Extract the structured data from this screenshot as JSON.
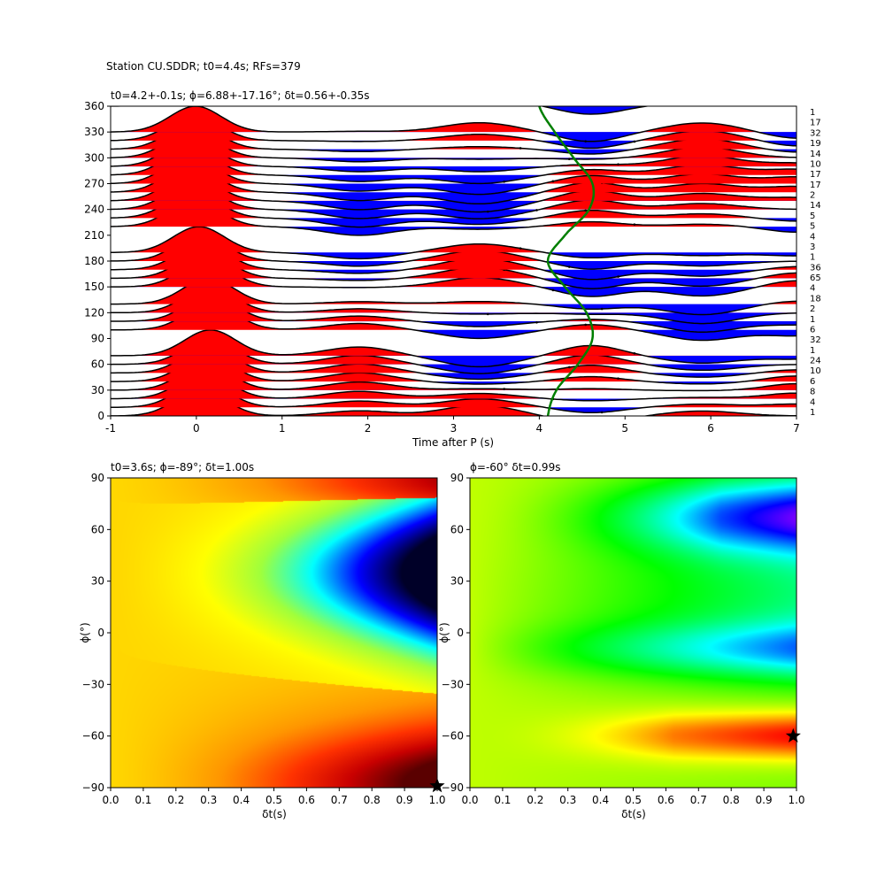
{
  "suptitle": "Station CU.SDDR; t0=4.4s; RFs=379",
  "chart_data": [
    {
      "type": "line",
      "panel": "receiver-function-gather",
      "title": "t0=4.2+-0.1s; ϕ=6.88+-17.16°; δt=0.56+-0.35s",
      "xlabel": "Time after P (s)",
      "ylabel": "",
      "xlim": [
        -1,
        7
      ],
      "ylim": [
        0,
        360
      ],
      "xticks": [
        "-1",
        "0",
        "1",
        "2",
        "3",
        "4",
        "5",
        "6",
        "7"
      ],
      "yticks": [
        "0",
        "30",
        "60",
        "90",
        "120",
        "150",
        "180",
        "210",
        "240",
        "270",
        "300",
        "330",
        "360"
      ],
      "positive_fill": "#ff0000",
      "negative_fill": "#0000ff",
      "curve_color": "#007f00",
      "backazimuth_bins": [
        0,
        10,
        20,
        30,
        40,
        50,
        60,
        70,
        100,
        110,
        120,
        130,
        150,
        160,
        170,
        180,
        190,
        220,
        230,
        240,
        250,
        260,
        270,
        280,
        290,
        300,
        310,
        320,
        330,
        360
      ],
      "bin_counts": [
        "1",
        "4",
        "8",
        "6",
        "10",
        "24",
        "1",
        "32",
        "6",
        "1",
        "2",
        "18",
        "4",
        "65",
        "36",
        "1",
        "3",
        "4",
        "5",
        "5",
        "14",
        "2",
        "17",
        "17",
        "10",
        "14",
        "19",
        "32",
        "17",
        "1"
      ],
      "moveout_curve": {
        "baz": [
          0,
          30,
          60,
          90,
          120,
          150,
          180,
          210,
          240,
          270,
          300,
          330,
          360
        ],
        "t": [
          4.1,
          4.2,
          4.45,
          4.62,
          4.55,
          4.3,
          4.1,
          4.3,
          4.58,
          4.62,
          4.4,
          4.18,
          4.0
        ]
      }
    },
    {
      "type": "heatmap",
      "panel": "grid-search-left",
      "title": "t0=3.6s; ϕ=-89°; δt=1.00s",
      "xlabel": "δt(s)",
      "ylabel": "ϕ(°)",
      "xlim": [
        0.0,
        1.0
      ],
      "ylim": [
        -90,
        90
      ],
      "xticks": [
        "0.0",
        "0.1",
        "0.2",
        "0.3",
        "0.4",
        "0.5",
        "0.6",
        "0.7",
        "0.8",
        "0.9",
        "1.0"
      ],
      "yticks": [
        "−90",
        "−60",
        "−30",
        "0",
        "30",
        "60",
        "90"
      ],
      "colormap": "hot_r",
      "best": {
        "dt": 1.0,
        "phi": -89
      }
    },
    {
      "type": "heatmap",
      "panel": "grid-search-right",
      "title": "ϕ=-60° δt=0.99s",
      "xlabel": "δt(s)",
      "ylabel": "ϕ(°)",
      "xlim": [
        0.0,
        1.0
      ],
      "ylim": [
        -90,
        90
      ],
      "xticks": [
        "0.0",
        "0.1",
        "0.2",
        "0.3",
        "0.4",
        "0.5",
        "0.6",
        "0.7",
        "0.8",
        "0.9",
        "1.0"
      ],
      "yticks": [
        "−90",
        "−60",
        "−30",
        "0",
        "30",
        "60",
        "90"
      ],
      "colormap": "gist_rainbow",
      "best": {
        "dt": 0.99,
        "phi": -60
      }
    }
  ]
}
